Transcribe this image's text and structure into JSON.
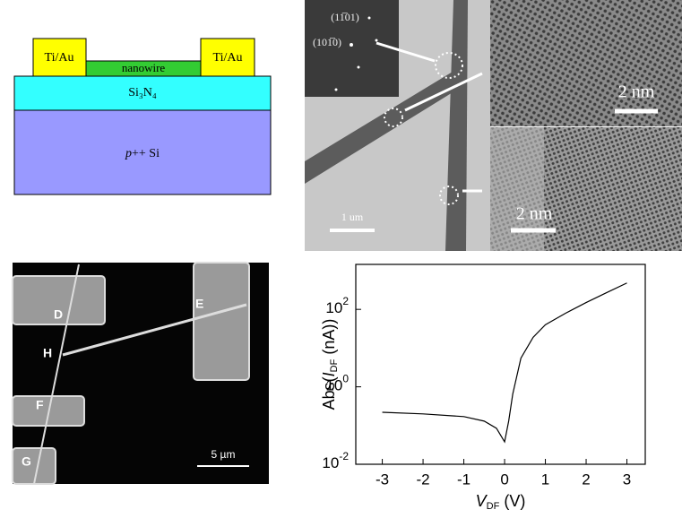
{
  "diagram": {
    "contact_left": "Ti/Au",
    "contact_right": "Ti/Au",
    "nanowire": "nanowire",
    "insulator": "Si₃N₄",
    "substrate": [
      "p",
      "++ Si"
    ]
  },
  "tem": {
    "diffraction_labels": [
      "(11̅01)",
      "(101̅0)"
    ],
    "scale_main": "1 um",
    "scale_hr_top": "2  nm",
    "scale_hr_bottom": "2  nm"
  },
  "sem": {
    "labels": [
      "D",
      "E",
      "H",
      "F",
      "G"
    ],
    "scale": "5 µm"
  },
  "chart_data": {
    "type": "line",
    "xlabel": [
      "V",
      "DF",
      " (V)"
    ],
    "ylabel": [
      "Abs(",
      "I",
      "DF",
      " (nA))"
    ],
    "x": [
      -3,
      -2,
      -1,
      -0.5,
      -0.2,
      0,
      0.1,
      0.2,
      0.4,
      0.7,
      1,
      1.5,
      2,
      2.5,
      3
    ],
    "values": [
      0.22,
      0.2,
      0.17,
      0.13,
      0.085,
      0.038,
      0.13,
      0.65,
      5.5,
      19,
      40,
      80,
      150,
      270,
      480
    ],
    "color": "#000000",
    "xlim": [
      -3.65,
      3.45
    ],
    "xticks": [
      -3,
      -2,
      -1,
      0,
      1,
      2,
      3
    ],
    "ylim": [
      0.01,
      1450
    ],
    "log_y": true,
    "yticks": [
      {
        "value": 0.01,
        "label": "10",
        "exponent": "-2"
      },
      {
        "value": 1,
        "label": "10",
        "exponent": "0"
      },
      {
        "value": 100,
        "label": "10",
        "exponent": "2"
      }
    ]
  }
}
